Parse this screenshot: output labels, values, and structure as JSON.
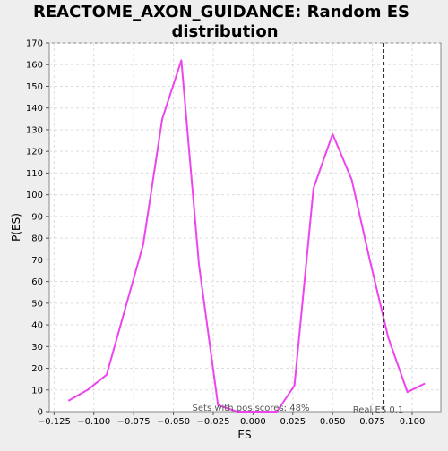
{
  "chart_data": {
    "type": "line",
    "title_lines": [
      "REACTOME_AXON_GUIDANCE: Random ES",
      "distribution"
    ],
    "xlabel": "ES",
    "ylabel": "P(ES)",
    "xlim": [
      -0.128,
      0.118
    ],
    "ylim": [
      0,
      170
    ],
    "x_ticks": [
      -0.125,
      -0.1,
      -0.075,
      -0.05,
      -0.025,
      0.0,
      0.025,
      0.05,
      0.075,
      0.1
    ],
    "x_tick_labels": [
      "−0.125",
      "−0.100",
      "−0.075",
      "−0.050",
      "−0.025",
      "0.000",
      "0.025",
      "0.050",
      "0.075",
      "0.100"
    ],
    "y_ticks": [
      0,
      10,
      20,
      30,
      40,
      50,
      60,
      70,
      80,
      90,
      100,
      110,
      120,
      130,
      140,
      150,
      160,
      170
    ],
    "grid": true,
    "series": [
      {
        "color": "#ee44ee",
        "x": [
          -0.116,
          -0.104,
          -0.092,
          -0.069,
          -0.057,
          -0.045,
          -0.034,
          -0.022,
          -0.01,
          0.003,
          0.015,
          0.026,
          0.038,
          0.05,
          0.062,
          0.073,
          0.085,
          0.097,
          0.108
        ],
        "y": [
          5,
          10,
          17,
          77,
          135,
          162,
          68,
          3,
          0,
          0,
          0,
          12,
          103,
          128,
          107,
          71,
          34,
          9,
          13
        ]
      }
    ],
    "real_es": {
      "x": 0.082,
      "label": "Real ES 0.1"
    },
    "annotation": "Sets with pos scores: 48%"
  },
  "colors": {
    "background": "#eeeeee",
    "plot_background": "#ffffff",
    "grid": "#dddddd",
    "series": "#ee44ee",
    "real_es_line": "#333333"
  }
}
